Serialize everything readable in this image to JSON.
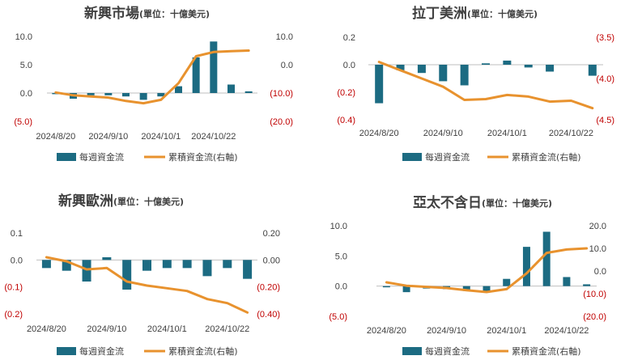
{
  "colors": {
    "bar": "#1c6b82",
    "line": "#e8922e",
    "axis": "#bfbfbf",
    "text": "#404040",
    "negative": "#c00000"
  },
  "legend": {
    "bar_label": "每週資金流",
    "line_label": "累積資金流(右軸)"
  },
  "chart_data": [
    {
      "type": "bar+line",
      "title": "新興市場",
      "unit": "(單位：十億美元)",
      "x_ticks": [
        "2024/8/20",
        "2024/9/10",
        "2024/10/1",
        "2024/10/22"
      ],
      "left_ticks": [
        "10.0",
        "5.0",
        "0.0",
        "(5.0)"
      ],
      "right_ticks": [
        "10.0",
        "0.0",
        "(10.0)",
        "(20.0)"
      ],
      "ylim_left": [
        -5,
        10
      ],
      "ylim_right": [
        -20,
        10
      ],
      "bars": [
        -0.2,
        -1.0,
        -0.4,
        -0.4,
        -0.6,
        -1.2,
        -0.6,
        1.2,
        6.3,
        9.1,
        1.5,
        0.3
      ],
      "cumulative": [
        -9.8,
        -10.8,
        -11.2,
        -11.6,
        -12.8,
        -13.6,
        -12.4,
        -6.5,
        3.0,
        4.5,
        4.8,
        5.0
      ]
    },
    {
      "type": "bar+line",
      "title": "拉丁美洲",
      "unit": "(單位：十億美元)",
      "x_ticks": [
        "2024/8/20",
        "2024/9/10",
        "2024/10/1",
        "2024/10/22"
      ],
      "left_ticks": [
        "0.2",
        "0.0",
        "(0.2)",
        "(0.4)"
      ],
      "right_ticks": [
        "(3.5)",
        "(4.0)",
        "(4.5)"
      ],
      "ylim_left": [
        -0.4,
        0.2
      ],
      "ylim_right": [
        -4.5,
        -3.5
      ],
      "bars": [
        -0.28,
        -0.04,
        -0.06,
        -0.12,
        -0.15,
        0.01,
        0.03,
        -0.02,
        -0.05,
        null,
        -0.08
      ],
      "cumulative": [
        -3.8,
        -3.9,
        -4.0,
        -4.1,
        -4.26,
        -4.25,
        -4.2,
        -4.22,
        -4.28,
        -4.27,
        -4.36
      ]
    },
    {
      "type": "bar+line",
      "title": "新興歐洲",
      "unit": "(單位：十億美元)",
      "x_ticks": [
        "2024/8/20",
        "2024/9/10",
        "2024/10/1",
        "2024/10/22"
      ],
      "left_ticks": [
        "0.1",
        "0.0",
        "(0.1)",
        "(0.2)"
      ],
      "right_ticks": [
        "0.20",
        "0.00",
        "(0.20)",
        "(0.40)"
      ],
      "ylim_left": [
        -0.2,
        0.1
      ],
      "ylim_right": [
        -0.4,
        0.2
      ],
      "bars": [
        -0.03,
        -0.04,
        -0.08,
        0.01,
        -0.11,
        -0.04,
        -0.03,
        -0.03,
        -0.06,
        -0.03,
        -0.07
      ],
      "cumulative": [
        0.02,
        -0.01,
        -0.07,
        -0.06,
        -0.16,
        -0.19,
        -0.21,
        -0.23,
        -0.29,
        -0.32,
        -0.39
      ]
    },
    {
      "type": "bar+line",
      "title": "亞太不含日",
      "unit": "(單位：十億美元)",
      "x_ticks": [
        "2024/8/20",
        "2024/9/10",
        "2024/10/1",
        "2024/10/22"
      ],
      "left_ticks": [
        "10.0",
        "5.0",
        "0.0",
        "(5.0)"
      ],
      "right_ticks": [
        "20.0",
        "10.0",
        "0.0",
        "(10.0)",
        "(20.0)"
      ],
      "ylim_left": [
        -5,
        10
      ],
      "ylim_right": [
        -20,
        20
      ],
      "bars": [
        -0.2,
        -1.0,
        -0.4,
        -0.5,
        -0.8,
        -0.8,
        1.2,
        6.5,
        9.0,
        1.5,
        0.3
      ],
      "cumulative": [
        -5.0,
        -6.5,
        -7.0,
        -7.5,
        -8.5,
        -9.3,
        -8.0,
        -1.0,
        8.0,
        9.5,
        10.0
      ]
    }
  ]
}
